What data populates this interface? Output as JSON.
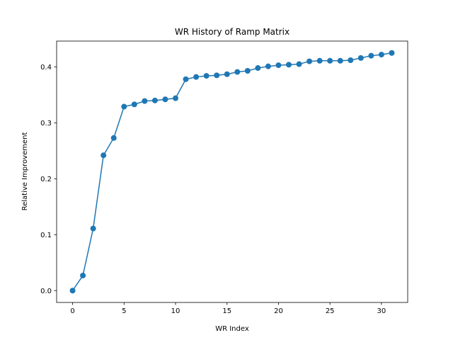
{
  "chart_data": {
    "type": "line",
    "title": "WR History of Ramp Matrix",
    "xlabel": "WR Index",
    "ylabel": "Relative Improvement",
    "xlim": [
      -1.55,
      32.55
    ],
    "ylim": [
      -0.0212,
      0.4462
    ],
    "xticks": [
      0,
      5,
      10,
      15,
      20,
      25,
      30
    ],
    "xtick_labels": [
      "0",
      "5",
      "10",
      "15",
      "20",
      "25",
      "30"
    ],
    "yticks": [
      0.0,
      0.1,
      0.2,
      0.3,
      0.4
    ],
    "ytick_labels": [
      "0.0",
      "0.1",
      "0.2",
      "0.3",
      "0.4"
    ],
    "grid": false,
    "legend": "none",
    "series": [
      {
        "color": "#1f77b4",
        "marker": "circle",
        "x": [
          0,
          1,
          2,
          3,
          4,
          5,
          6,
          7,
          8,
          9,
          10,
          11,
          12,
          13,
          14,
          15,
          16,
          17,
          18,
          19,
          20,
          21,
          22,
          23,
          24,
          25,
          26,
          27,
          28,
          29,
          30,
          31
        ],
        "y": [
          0.0,
          0.027,
          0.111,
          0.242,
          0.273,
          0.329,
          0.333,
          0.339,
          0.34,
          0.342,
          0.344,
          0.378,
          0.382,
          0.384,
          0.385,
          0.387,
          0.391,
          0.393,
          0.398,
          0.401,
          0.403,
          0.404,
          0.405,
          0.41,
          0.411,
          0.411,
          0.411,
          0.412,
          0.416,
          0.42,
          0.422,
          0.425
        ]
      }
    ]
  }
}
